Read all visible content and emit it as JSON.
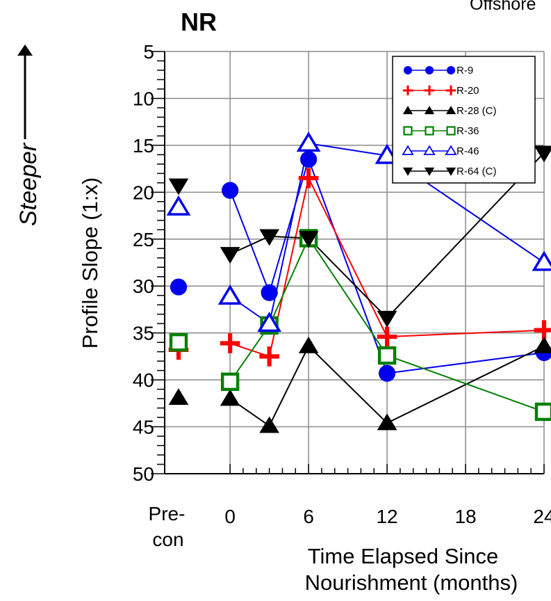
{
  "title": "NR",
  "corner_text": "Offshore",
  "steeper_label": "Steeper",
  "chart_data": {
    "type": "line",
    "ylabel": "Profile Slope (1:x)",
    "xlabel_line1": "Time Elapsed Since",
    "xlabel_line2": "Nourishment (months)",
    "y_inverted": true,
    "ylim": [
      5,
      50
    ],
    "y_ticks": [
      "5",
      "10",
      "15",
      "20",
      "25",
      "30",
      "35",
      "40",
      "45",
      "50"
    ],
    "xlim": [
      -5,
      24
    ],
    "x_ticks": [
      {
        "value": 0,
        "label": "0"
      },
      {
        "value": 6,
        "label": "6"
      },
      {
        "value": 12,
        "label": "12"
      },
      {
        "value": 18,
        "label": "18"
      },
      {
        "value": 24,
        "label": "24"
      }
    ],
    "precon_label_line1": "Pre-",
    "precon_label_line2": "con",
    "grid": true,
    "legend_position": "top-right",
    "series": [
      {
        "name": "R-9",
        "color": "#0000ee",
        "marker": "circle",
        "precon": 30.1,
        "points": [
          [
            0,
            19.8
          ],
          [
            3,
            30.7
          ],
          [
            6,
            16.5
          ],
          [
            12,
            39.3
          ],
          [
            24,
            37.1
          ]
        ]
      },
      {
        "name": "R-20",
        "color": "#ff0000",
        "marker": "plus",
        "precon": 36.8,
        "points": [
          [
            0,
            36.1
          ],
          [
            3,
            37.5
          ],
          [
            6,
            18.5
          ],
          [
            12,
            35.4
          ],
          [
            24,
            34.7
          ]
        ]
      },
      {
        "name": "R-28 (C)",
        "color": "#000000",
        "marker": "triangle-up",
        "precon": 41.9,
        "points": [
          [
            0,
            42.0
          ],
          [
            3,
            44.9
          ],
          [
            6,
            36.4
          ],
          [
            12,
            44.6
          ],
          [
            24,
            36.4
          ]
        ]
      },
      {
        "name": "R-36",
        "color": "#008000",
        "marker": "square-open",
        "precon": 36.0,
        "points": [
          [
            0,
            40.2
          ],
          [
            3,
            34.2
          ],
          [
            6,
            24.9
          ],
          [
            12,
            37.4
          ],
          [
            24,
            43.4
          ]
        ]
      },
      {
        "name": "R-46",
        "color": "#0000ee",
        "marker": "triangle-up-open",
        "precon": 21.6,
        "points": [
          [
            0,
            31.1
          ],
          [
            3,
            34.0
          ],
          [
            6,
            14.8
          ],
          [
            12,
            16.1
          ],
          [
            24,
            27.5
          ]
        ]
      },
      {
        "name": "R-64 (C)",
        "color": "#000000",
        "marker": "triangle-down",
        "precon": 19.3,
        "points": [
          [
            0,
            26.6
          ],
          [
            3,
            24.7
          ],
          [
            6,
            24.9
          ],
          [
            12,
            33.4
          ],
          [
            24,
            15.8
          ]
        ]
      }
    ]
  }
}
